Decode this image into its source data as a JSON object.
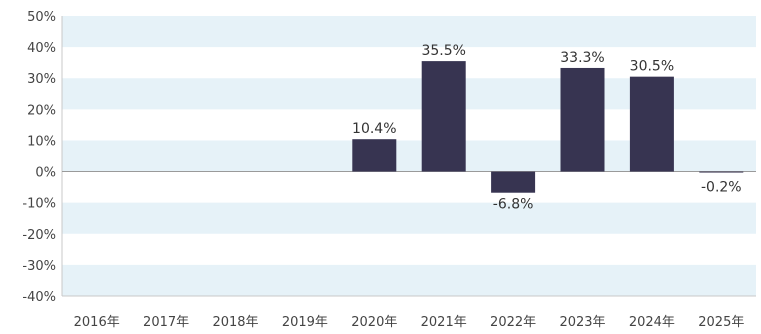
{
  "chart_data": {
    "type": "bar",
    "categories": [
      "2016年",
      "2017年",
      "2018年",
      "2019年",
      "2020年",
      "2021年",
      "2022年",
      "2023年",
      "2024年",
      "2025年"
    ],
    "values": [
      null,
      null,
      null,
      null,
      10.4,
      35.5,
      -6.8,
      33.3,
      30.5,
      -0.2
    ],
    "data_labels": [
      "",
      "",
      "",
      "",
      "10.4%",
      "35.5%",
      "-6.8%",
      "33.3%",
      "30.5%",
      "-0.2%"
    ],
    "ylim": [
      -40,
      50
    ],
    "yticks": [
      50,
      40,
      30,
      20,
      10,
      0,
      -10,
      -20,
      -30,
      -40
    ],
    "ytick_labels": [
      "50%",
      "40%",
      "30%",
      "20%",
      "10%",
      "0%",
      "-10%",
      "-20%",
      "-30%",
      "-40%"
    ],
    "title": "",
    "xlabel": "",
    "ylabel": "",
    "grid": "alternating horizontal bands",
    "legend": "none",
    "colors": {
      "bar": "#373451",
      "band": "#e6f2f8",
      "zero_line": "#9a9a9a",
      "axis": "#c8c8c8"
    }
  }
}
